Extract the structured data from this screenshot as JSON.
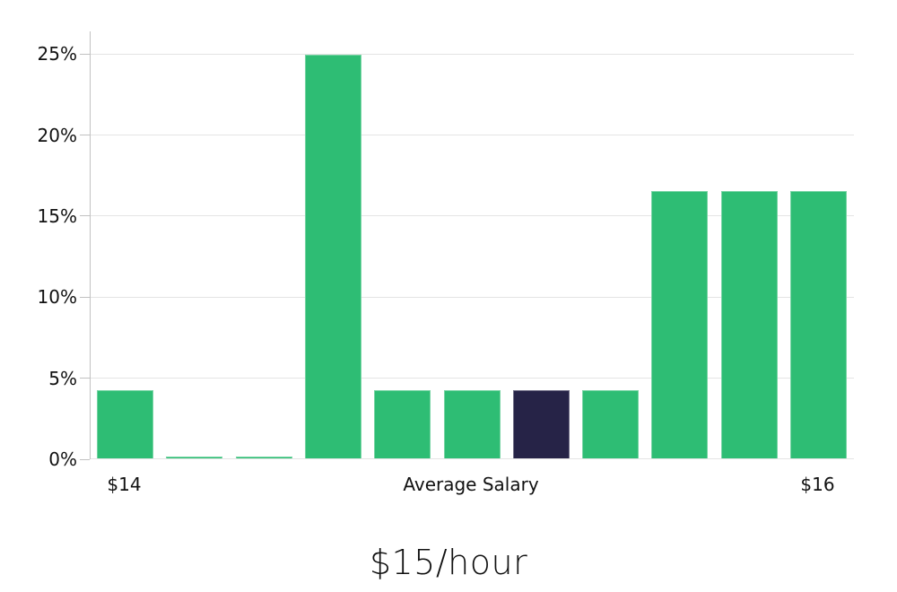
{
  "title": "$15/hour",
  "colors": {
    "bar_green": "#2ebd74",
    "bar_highlight": "#262347",
    "gridline": "#e4e4e4",
    "axis_line": "#c1c1c1",
    "label_text": "#111111",
    "background": "#ffffff"
  },
  "chart_data": {
    "type": "bar",
    "title": "$15/hour",
    "categories": [
      "$14",
      "",
      "",
      "",
      "",
      "Average Salary",
      "",
      "",
      "",
      "",
      "$16"
    ],
    "values": [
      4.2,
      0.1,
      0.1,
      24.9,
      4.2,
      4.2,
      4.2,
      4.2,
      16.5,
      16.5,
      16.5
    ],
    "highlight_index": 6,
    "yticks": [
      0,
      5,
      10,
      15,
      20,
      25
    ],
    "ytick_labels": [
      "0%",
      "5%",
      "10%",
      "15%",
      "20%",
      "25%"
    ],
    "ylim": [
      0,
      26.4
    ],
    "xlabel": "",
    "ylabel": "",
    "legend": "none",
    "grid": "horizontal"
  }
}
